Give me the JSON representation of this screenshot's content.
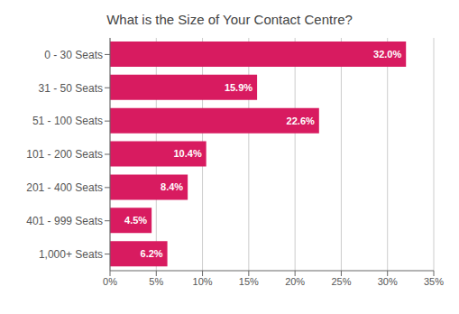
{
  "chart_data": {
    "type": "bar",
    "orientation": "horizontal",
    "title": "What is the Size of Your Contact Centre?",
    "categories": [
      "0 - 30 Seats",
      "31 - 50 Seats",
      "51 - 100 Seats",
      "101 - 200 Seats",
      "201 - 400 Seats",
      "401 - 999 Seats",
      "1,000+ Seats"
    ],
    "values": [
      32.0,
      15.9,
      22.6,
      10.4,
      8.4,
      4.5,
      6.2
    ],
    "value_labels": [
      "32.0%",
      "15.9%",
      "22.6%",
      "10.4%",
      "8.4%",
      "4.5%",
      "6.2%"
    ],
    "data_labels": true,
    "color": "#D81B60",
    "xlim": [
      0,
      35
    ],
    "xticks": [
      {
        "value": 0,
        "label": "0%"
      },
      {
        "value": 5,
        "label": "5%"
      },
      {
        "value": 10,
        "label": "10%"
      },
      {
        "value": 15,
        "label": "15%"
      },
      {
        "value": 20,
        "label": "20%"
      },
      {
        "value": 25,
        "label": "25%"
      },
      {
        "value": 30,
        "label": "30%"
      },
      {
        "value": 35,
        "label": "35%"
      }
    ],
    "grid": true
  }
}
